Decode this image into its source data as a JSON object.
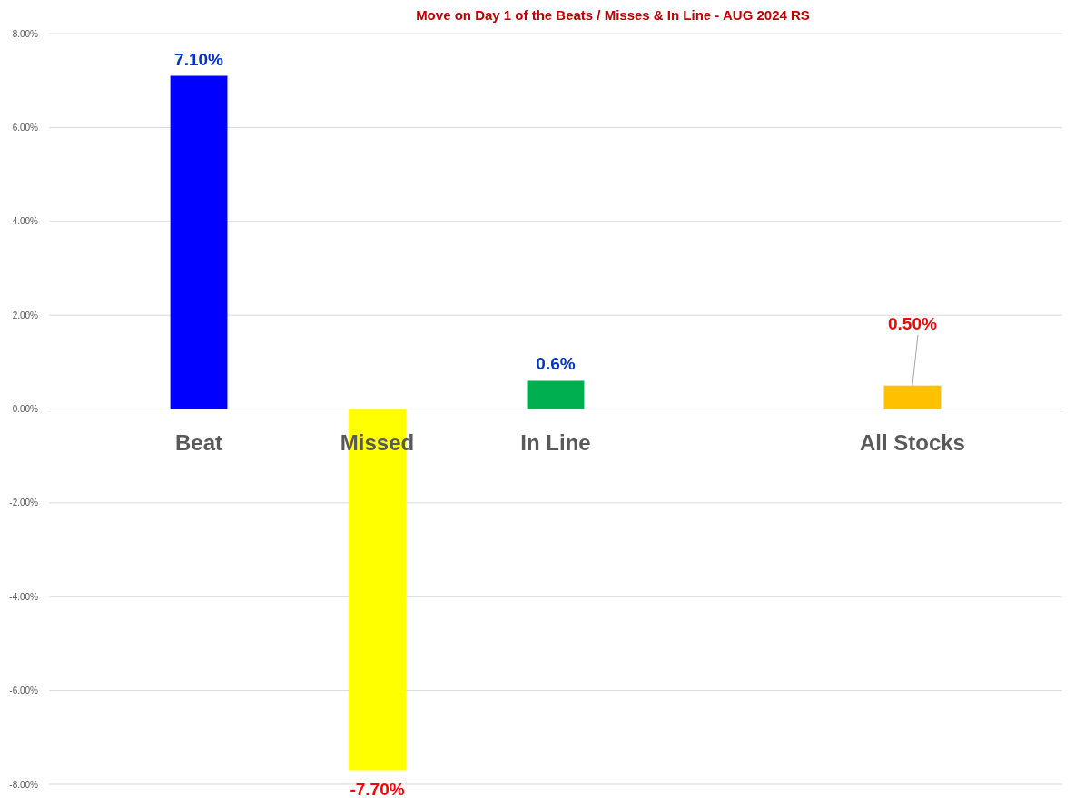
{
  "chart_data": {
    "type": "bar",
    "title": "Move on Day 1 of the Beats / Misses & In Line - AUG  2024 RS",
    "categories": [
      "Beat",
      "Missed",
      "In Line",
      null,
      "All Stocks"
    ],
    "values": [
      7.1,
      -7.7,
      0.6,
      null,
      0.5
    ],
    "colors": [
      "#0000ff",
      "#ffff00",
      "#00b050",
      null,
      "#ffc000"
    ],
    "value_labels": [
      "7.10%",
      "-7.70%",
      "0.6%",
      null,
      "0.50%"
    ],
    "ylim": [
      -8,
      8
    ],
    "yticks": [
      {
        "value": 8,
        "label": "8.00%"
      },
      {
        "value": 6,
        "label": "6.00%"
      },
      {
        "value": 4,
        "label": "4.00%"
      },
      {
        "value": 2,
        "label": "2.00%"
      },
      {
        "value": 0,
        "label": "0.00%"
      },
      {
        "value": -2,
        "label": "-2.00%"
      },
      {
        "value": -4,
        "label": "-4.00%"
      },
      {
        "value": -6,
        "label": "-6.00%"
      },
      {
        "value": -8,
        "label": "-8.00%"
      }
    ],
    "grid": "y"
  }
}
